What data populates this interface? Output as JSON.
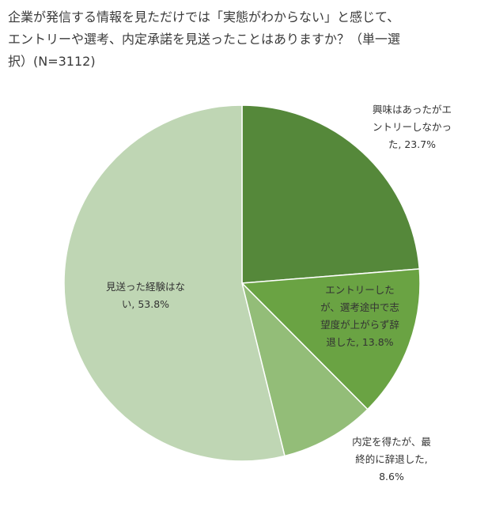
{
  "title_lines": [
    "企業が発信する情報を見ただけでは「実態がわからない」と感じて、",
    "エントリーや選考、内定承諾を見送ったことはありますか？（単一選",
    "択）(N=3112)"
  ],
  "chart_data": {
    "type": "pie",
    "title": "企業が発信する情報を見ただけでは「実態がわからない」と感じて、エントリーや選考、内定承諾を見送ったことはありますか？（単一選択）(N=3112)",
    "slices": [
      {
        "label": "興味はあったがエントリーしなかった",
        "value": 23.7,
        "color": "#55883a",
        "label_lines": [
          "興味はあったがエ",
          "ントリーしなかっ",
          "た, 23.7%"
        ]
      },
      {
        "label": "エントリーしたが、選考途中で志望度が上がらず辞退した",
        "value": 13.8,
        "color": "#6aa343",
        "label_lines": [
          "エントリーした",
          "が、選考途中で志",
          "望度が上がらず辞",
          "退した, 13.8%"
        ]
      },
      {
        "label": "内定を得たが、最終的に辞退した",
        "value": 8.6,
        "color": "#93bd78",
        "label_lines": [
          "内定を得たが、最",
          "終的に辞退した,",
          "8.6%"
        ]
      },
      {
        "label": "見送った経験はない",
        "value": 53.8,
        "color": "#bfd6b4",
        "label_lines": [
          "見送った経験はな",
          "い, 53.8%"
        ]
      }
    ],
    "legend": "none",
    "start_angle": "12 o'clock",
    "direction": "clockwise"
  }
}
